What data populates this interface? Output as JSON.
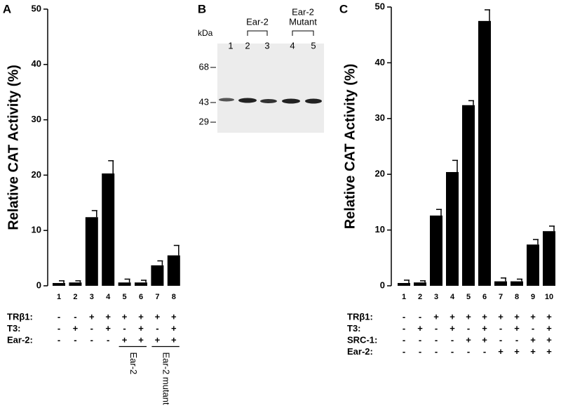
{
  "chart_data": [
    {
      "type": "bar",
      "label": "A",
      "y_label": "Relative CAT Activity (%)",
      "categories": [
        "1",
        "2",
        "3",
        "4",
        "5",
        "6",
        "7",
        "8"
      ],
      "values": [
        0.5,
        0.6,
        12.4,
        20.3,
        0.6,
        0.6,
        3.7,
        5.5
      ],
      "errors": [
        0.4,
        0.3,
        1.2,
        2.3,
        0.6,
        0.4,
        0.8,
        1.8
      ],
      "color": "#000000",
      "ylim": [
        0,
        50
      ],
      "yticks": [
        0,
        10,
        20,
        30,
        40,
        50
      ],
      "conditions": [
        {
          "name": "TRβ1:",
          "values": [
            "-",
            "-",
            "+",
            "+",
            "+",
            "+",
            "+",
            "+"
          ]
        },
        {
          "name": "T3:",
          "values": [
            "-",
            "+",
            "-",
            "+",
            "-",
            "+",
            "-",
            "+"
          ]
        },
        {
          "name": "Ear-2:",
          "values": [
            "-",
            "-",
            "-",
            "-",
            "+",
            "+",
            "+",
            "+"
          ]
        }
      ],
      "groups": [
        {
          "label": "Ear-2"
        },
        {
          "label": "Ear-2 mutant"
        }
      ]
    },
    {
      "type": "bar",
      "label": "C",
      "y_label": "Relative CAT Activity (%)",
      "categories": [
        "1",
        "2",
        "3",
        "4",
        "5",
        "6",
        "7",
        "8",
        "9",
        "10"
      ],
      "values": [
        0.5,
        0.6,
        12.6,
        20.4,
        32.4,
        47.5,
        0.8,
        0.8,
        7.4,
        9.8
      ],
      "errors": [
        0.5,
        0.3,
        1.1,
        2.1,
        0.8,
        2.0,
        0.6,
        0.4,
        0.9,
        0.9
      ],
      "color": "#000000",
      "ylim": [
        0,
        50
      ],
      "yticks": [
        0,
        10,
        20,
        30,
        40,
        50
      ],
      "conditions": [
        {
          "name": "TRβ1:",
          "values": [
            "-",
            "-",
            "+",
            "+",
            "+",
            "+",
            "+",
            "+",
            "+",
            "+"
          ]
        },
        {
          "name": "T3:",
          "values": [
            "-",
            "+",
            "-",
            "+",
            "-",
            "+",
            "-",
            "+",
            "-",
            "+"
          ]
        },
        {
          "name": "SRC-1:",
          "values": [
            "-",
            "-",
            "-",
            "-",
            "+",
            "+",
            "-",
            "-",
            "+",
            "+"
          ]
        },
        {
          "name": "Ear-2:",
          "values": [
            "-",
            "-",
            "-",
            "-",
            "-",
            "-",
            "+",
            "+",
            "+",
            "+"
          ]
        }
      ],
      "groups": []
    }
  ],
  "blot": {
    "label": "B",
    "unit": "kDa",
    "markers": [
      68,
      43,
      29
    ],
    "lanes": [
      "1",
      "2",
      "3",
      "4",
      "5"
    ],
    "groups": [
      {
        "label": [
          "Ear-2"
        ]
      },
      {
        "label": [
          "Ear-2",
          "Mutant"
        ]
      }
    ]
  }
}
